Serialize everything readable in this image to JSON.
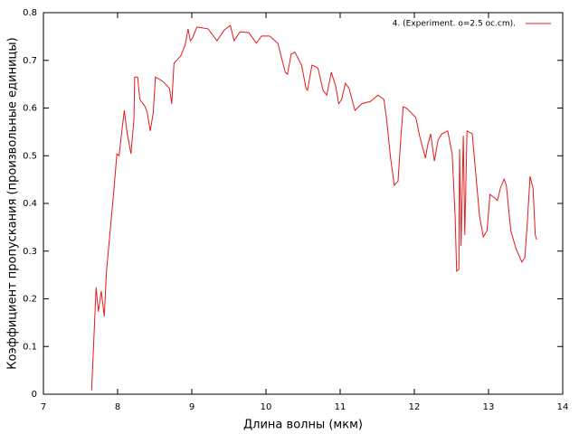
{
  "chart_data": {
    "type": "line",
    "xlabel": "Длина волны (мкм)",
    "ylabel": "Коэффициент пропускания (произвольные единицы)",
    "x": [
      7.65,
      7.71,
      7.74,
      7.78,
      7.82,
      7.85,
      7.9,
      7.95,
      7.99,
      8.02,
      8.05,
      8.09,
      8.13,
      8.18,
      8.22,
      8.23,
      8.27,
      8.3,
      8.37,
      8.4,
      8.44,
      8.48,
      8.51,
      8.61,
      8.7,
      8.73,
      8.76,
      8.85,
      8.91,
      8.95,
      8.98,
      9.01,
      9.07,
      9.22,
      9.34,
      9.44,
      9.52,
      9.57,
      9.65,
      9.77,
      9.87,
      9.94,
      10.05,
      10.16,
      10.26,
      10.29,
      10.34,
      10.39,
      10.48,
      10.54,
      10.56,
      10.62,
      10.7,
      10.77,
      10.82,
      10.88,
      10.94,
      10.98,
      11.02,
      11.07,
      11.12,
      11.2,
      11.29,
      11.41,
      11.51,
      11.59,
      11.63,
      11.68,
      11.73,
      11.78,
      11.82,
      11.85,
      11.9,
      12.02,
      12.07,
      12.15,
      12.18,
      12.22,
      12.27,
      12.32,
      12.37,
      12.45,
      12.51,
      12.55,
      12.57,
      12.6,
      12.61,
      12.63,
      12.66,
      12.68,
      12.71,
      12.78,
      12.82,
      12.88,
      12.93,
      12.98,
      13.02,
      13.07,
      13.12,
      13.16,
      13.21,
      13.24,
      13.3,
      13.37,
      13.45,
      13.49,
      13.52,
      13.56,
      13.6,
      13.63,
      13.65
    ],
    "series": [
      {
        "name": "4. (Experiment. o=2.5 oc.cm).",
        "color": "#e41a1c",
        "values": [
          0.008,
          0.224,
          0.173,
          0.216,
          0.163,
          0.258,
          0.343,
          0.428,
          0.504,
          0.5,
          0.542,
          0.595,
          0.546,
          0.504,
          0.576,
          0.665,
          0.665,
          0.618,
          0.603,
          0.59,
          0.552,
          0.59,
          0.665,
          0.656,
          0.641,
          0.609,
          0.694,
          0.709,
          0.732,
          0.766,
          0.741,
          0.747,
          0.77,
          0.766,
          0.741,
          0.764,
          0.773,
          0.741,
          0.76,
          0.758,
          0.736,
          0.751,
          0.751,
          0.736,
          0.675,
          0.671,
          0.713,
          0.717,
          0.69,
          0.641,
          0.637,
          0.69,
          0.684,
          0.637,
          0.627,
          0.675,
          0.646,
          0.609,
          0.618,
          0.652,
          0.641,
          0.595,
          0.609,
          0.614,
          0.627,
          0.618,
          0.571,
          0.495,
          0.438,
          0.447,
          0.542,
          0.603,
          0.599,
          0.58,
          0.542,
          0.495,
          0.523,
          0.546,
          0.489,
          0.533,
          0.546,
          0.552,
          0.504,
          0.372,
          0.258,
          0.262,
          0.514,
          0.311,
          0.542,
          0.334,
          0.552,
          0.546,
          0.476,
          0.372,
          0.33,
          0.343,
          0.419,
          0.413,
          0.406,
          0.432,
          0.451,
          0.438,
          0.343,
          0.305,
          0.277,
          0.287,
          0.353,
          0.457,
          0.432,
          0.334,
          0.324
        ]
      }
    ],
    "xlim": [
      7,
      14
    ],
    "xticks": [
      7,
      8,
      9,
      10,
      11,
      12,
      13,
      14
    ],
    "ylim": [
      0,
      0.8
    ],
    "yticks": [
      0,
      0.1,
      0.2,
      0.3,
      0.4,
      0.5,
      0.6,
      0.7,
      0.8
    ],
    "legend": "top-right"
  }
}
